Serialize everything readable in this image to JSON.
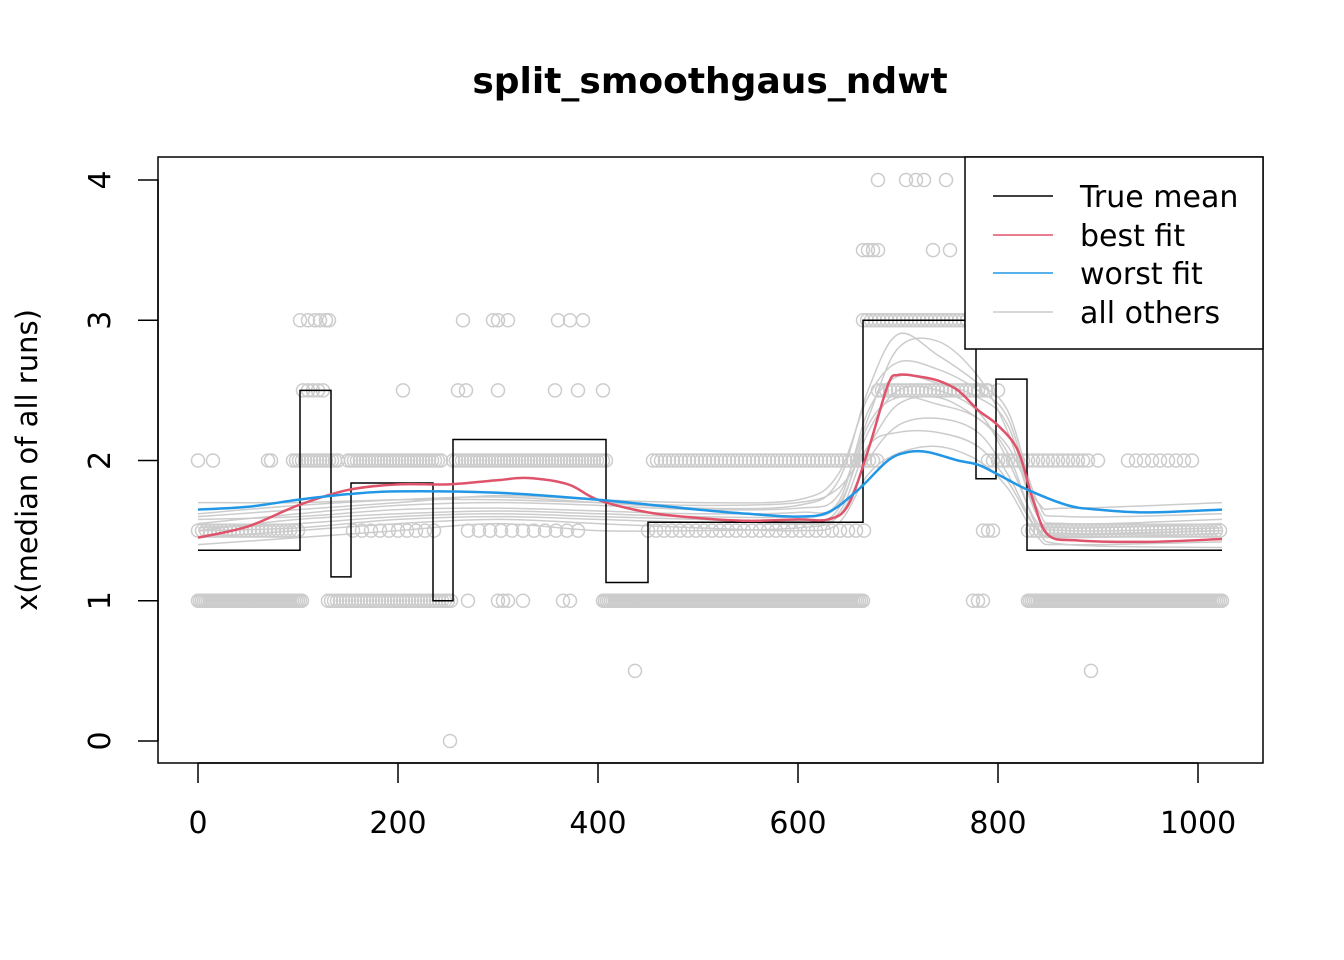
{
  "chart_data": {
    "type": "line",
    "title": "split_smoothgaus_ndwt",
    "xlabel": "",
    "ylabel": "x(median of all runs)",
    "xlim": [
      -20,
      1085
    ],
    "ylim": [
      -0.16,
      4.16
    ],
    "xticks": [
      0,
      200,
      400,
      600,
      800,
      1000
    ],
    "yticks": [
      0,
      1,
      2,
      3,
      4
    ],
    "legend": {
      "placement": "top-right",
      "entries": [
        {
          "label": "True mean",
          "color": "#000000"
        },
        {
          "label": "best fit",
          "color": "#DF536B"
        },
        {
          "label": "worst fit",
          "color": "#2297E6"
        },
        {
          "label": "all others",
          "color": "#CCCCCC"
        }
      ]
    },
    "true_mean": [
      [
        0,
        1.36
      ],
      [
        102,
        1.36
      ],
      [
        102,
        2.5
      ],
      [
        133,
        2.5
      ],
      [
        133,
        1.17
      ],
      [
        153,
        1.17
      ],
      [
        153,
        1.84
      ],
      [
        235,
        1.84
      ],
      [
        235,
        1.0
      ],
      [
        255,
        1.0
      ],
      [
        255,
        2.15
      ],
      [
        408,
        2.15
      ],
      [
        408,
        1.13
      ],
      [
        450,
        1.13
      ],
      [
        450,
        1.56
      ],
      [
        665,
        1.56
      ],
      [
        665,
        3.0
      ],
      [
        778,
        3.0
      ],
      [
        778,
        1.87
      ],
      [
        798,
        1.87
      ],
      [
        798,
        2.58
      ],
      [
        829,
        2.58
      ],
      [
        829,
        1.36
      ],
      [
        1024,
        1.36
      ]
    ],
    "best_fit": [
      [
        0,
        1.45
      ],
      [
        50,
        1.53
      ],
      [
        100,
        1.68
      ],
      [
        150,
        1.79
      ],
      [
        200,
        1.83
      ],
      [
        250,
        1.83
      ],
      [
        300,
        1.86
      ],
      [
        330,
        1.875
      ],
      [
        370,
        1.83
      ],
      [
        400,
        1.72
      ],
      [
        450,
        1.63
      ],
      [
        500,
        1.59
      ],
      [
        550,
        1.57
      ],
      [
        600,
        1.58
      ],
      [
        630,
        1.58
      ],
      [
        650,
        1.68
      ],
      [
        670,
        2.07
      ],
      [
        690,
        2.54
      ],
      [
        700,
        2.61
      ],
      [
        720,
        2.6
      ],
      [
        740,
        2.57
      ],
      [
        760,
        2.5
      ],
      [
        780,
        2.36
      ],
      [
        800,
        2.25
      ],
      [
        820,
        2.07
      ],
      [
        835,
        1.72
      ],
      [
        850,
        1.47
      ],
      [
        880,
        1.43
      ],
      [
        950,
        1.42
      ],
      [
        1024,
        1.44
      ]
    ],
    "worst_fit": [
      [
        0,
        1.65
      ],
      [
        50,
        1.67
      ],
      [
        100,
        1.72
      ],
      [
        150,
        1.76
      ],
      [
        200,
        1.78
      ],
      [
        300,
        1.77
      ],
      [
        400,
        1.72
      ],
      [
        500,
        1.65
      ],
      [
        550,
        1.62
      ],
      [
        600,
        1.6
      ],
      [
        630,
        1.63
      ],
      [
        660,
        1.79
      ],
      [
        690,
        2.0
      ],
      [
        710,
        2.06
      ],
      [
        730,
        2.06
      ],
      [
        760,
        2.0
      ],
      [
        780,
        1.97
      ],
      [
        800,
        1.9
      ],
      [
        830,
        1.79
      ],
      [
        870,
        1.68
      ],
      [
        900,
        1.65
      ],
      [
        950,
        1.63
      ],
      [
        1024,
        1.65
      ]
    ],
    "others_x": [
      0,
      100,
      200,
      300,
      400,
      500,
      600,
      640,
      670,
      700,
      740,
      780,
      810,
      840,
      870,
      1024
    ],
    "others": [
      [
        1.55,
        1.62,
        1.68,
        1.7,
        1.68,
        1.65,
        1.66,
        1.75,
        2.3,
        2.8,
        2.85,
        2.6,
        2.2,
        1.6,
        1.52,
        1.55
      ],
      [
        1.5,
        1.58,
        1.62,
        1.64,
        1.62,
        1.6,
        1.6,
        1.68,
        2.2,
        2.5,
        2.5,
        2.35,
        2.0,
        1.55,
        1.48,
        1.5
      ],
      [
        1.7,
        1.7,
        1.72,
        1.72,
        1.7,
        1.68,
        1.7,
        1.8,
        2.1,
        2.4,
        2.45,
        2.3,
        2.1,
        1.7,
        1.66,
        1.7
      ],
      [
        1.4,
        1.45,
        1.5,
        1.55,
        1.5,
        1.5,
        1.52,
        1.6,
        2.0,
        2.25,
        2.3,
        2.2,
        1.9,
        1.5,
        1.4,
        1.38
      ],
      [
        1.6,
        1.65,
        1.7,
        1.75,
        1.72,
        1.7,
        1.72,
        1.9,
        2.45,
        2.7,
        2.65,
        2.5,
        2.3,
        1.65,
        1.55,
        1.58
      ],
      [
        1.52,
        1.55,
        1.6,
        1.62,
        1.6,
        1.58,
        1.55,
        1.62,
        2.1,
        2.2,
        2.2,
        2.1,
        1.85,
        1.5,
        1.45,
        1.48
      ],
      [
        1.58,
        1.6,
        1.65,
        1.66,
        1.64,
        1.62,
        1.63,
        1.7,
        2.35,
        2.6,
        2.55,
        2.45,
        2.25,
        1.6,
        1.5,
        1.52
      ],
      [
        1.45,
        1.5,
        1.55,
        1.58,
        1.55,
        1.52,
        1.5,
        1.55,
        1.9,
        2.05,
        2.1,
        2.0,
        1.8,
        1.45,
        1.4,
        1.42
      ],
      [
        1.62,
        1.68,
        1.72,
        1.74,
        1.7,
        1.66,
        1.68,
        1.85,
        2.5,
        2.9,
        2.75,
        2.55,
        2.35,
        1.7,
        1.6,
        1.62
      ],
      [
        1.5,
        1.52,
        1.58,
        1.6,
        1.58,
        1.56,
        1.57,
        1.65,
        2.25,
        2.45,
        2.4,
        2.3,
        2.05,
        1.52,
        1.47,
        1.5
      ]
    ],
    "points": [
      {
        "y": 4,
        "x": [
          680,
          708,
          718,
          726,
          748
        ]
      },
      {
        "y": 3.5,
        "x": [
          665,
          670,
          675,
          680,
          735,
          752
        ]
      },
      {
        "y": 3,
        "x": [
          102,
          110,
          117,
          122,
          128,
          131,
          265,
          295,
          300,
          310,
          360,
          372,
          385
        ],
        "ranges": [
          [
            665,
            775,
            4
          ]
        ]
      },
      {
        "y": 2.5,
        "x": [
          105,
          110,
          115,
          120,
          125,
          205,
          260,
          268,
          300,
          357,
          380,
          405,
          790,
          800
        ],
        "ranges": [
          [
            680,
            790,
            4
          ]
        ]
      },
      {
        "y": 2,
        "x": [
          0,
          15,
          70,
          73,
          900
        ],
        "ranges": [
          [
            95,
            140,
            3
          ],
          [
            150,
            245,
            3
          ],
          [
            255,
            410,
            3
          ],
          [
            455,
            680,
            4
          ],
          [
            790,
            890,
            5
          ],
          [
            930,
            1000,
            8
          ]
        ]
      },
      {
        "y": 1.5,
        "ranges": [
          [
            0,
            100,
            4
          ],
          [
            155,
            240,
            9
          ],
          [
            270,
            380,
            11
          ],
          [
            450,
            670,
            8
          ],
          [
            830,
            1024,
            4
          ]
        ],
        "x": [
          785,
          790,
          795
        ]
      },
      {
        "y": 1,
        "x": [
          270,
          300,
          305,
          310,
          325,
          365,
          372,
          775,
          780,
          785
        ],
        "ranges": [
          [
            0,
            105,
            2
          ],
          [
            130,
            255,
            3
          ],
          [
            405,
            665,
            2
          ],
          [
            830,
            1024,
            2
          ]
        ]
      },
      {
        "y": 0.5,
        "x": [
          437,
          893
        ]
      },
      {
        "y": 0,
        "x": [
          252
        ]
      }
    ]
  }
}
